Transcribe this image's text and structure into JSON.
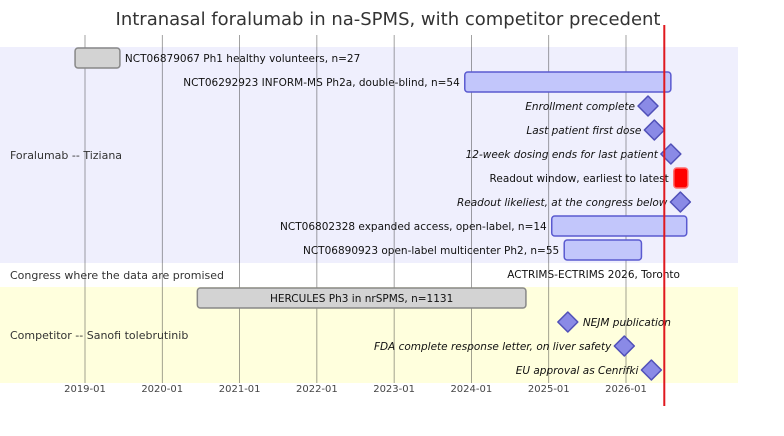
{
  "chart_data": {
    "type": "gantt",
    "title": "Intranasal foralumab in na-SPMS, with competitor precedent",
    "x_axis": {
      "ticks": [
        "2019-01",
        "2020-01",
        "2021-01",
        "2022-01",
        "2023-01",
        "2024-01",
        "2025-01",
        "2026-01"
      ],
      "range": [
        "2018-04-01",
        "2027-05-01"
      ]
    },
    "today_marker": "2026-07-01",
    "colors": {
      "section1_bg": "#efeffd",
      "section2_bg": "#ffffff",
      "section3_bg": "#ffffdd",
      "task_fill": "#c2c6fb",
      "task_stroke": "#5a5ad0",
      "grey_fill": "#d3d3d3",
      "grey_stroke": "#888888",
      "milestone_fill": "#8a8ae6",
      "milestone_stroke": "#5050b8",
      "critical_fill": "#ff0000",
      "today_line": "#e0191f",
      "grid": "#222222"
    },
    "sections": [
      {
        "name": "Foralumab -- Tiziana",
        "rows": [
          0,
          8
        ],
        "bg": "section1_bg"
      },
      {
        "name": "Congress where the data are promised",
        "rows": [
          9,
          9
        ],
        "bg": "section2_bg"
      },
      {
        "name": "Competitor -- Sanofi tolebrutinib",
        "rows": [
          10,
          13
        ],
        "bg": "section3_bg"
      }
    ],
    "tasks": [
      {
        "row": 0,
        "kind": "bar",
        "style": "grey",
        "label": "NCT06879067 Ph1 healthy volunteers, n=27",
        "start": "2018-11-15",
        "end": "2019-06-15",
        "label_pos": "right"
      },
      {
        "row": 1,
        "kind": "bar",
        "style": "active",
        "label": "NCT06292923 INFORM-MS Ph2a, double-blind, n=54",
        "start": "2023-12-01",
        "end": "2026-08-01",
        "label_pos": "left"
      },
      {
        "row": 2,
        "kind": "milestone",
        "style": "active",
        "label": "Enrollment complete",
        "date": "2026-04-15"
      },
      {
        "row": 3,
        "kind": "milestone",
        "style": "active",
        "label": "Last patient first dose",
        "date": "2026-05-15"
      },
      {
        "row": 4,
        "kind": "milestone",
        "style": "active",
        "label": "12-week dosing ends for last patient",
        "date": "2026-08-01"
      },
      {
        "row": 5,
        "kind": "critical",
        "style": "crit",
        "label": "Readout window, earliest to latest",
        "start": "2026-08-15",
        "end": "2026-10-01"
      },
      {
        "row": 6,
        "kind": "milestone",
        "style": "active",
        "label": "Readout likeliest, at the congress below",
        "date": "2026-09-15"
      },
      {
        "row": 7,
        "kind": "bar",
        "style": "active",
        "label": "NCT06802328 expanded access, open-label, n=14",
        "start": "2025-01-15",
        "end": "2026-10-15",
        "label_pos": "left"
      },
      {
        "row": 8,
        "kind": "bar",
        "style": "active",
        "label": "NCT06890923 open-label multicenter Ph2, n=55",
        "start": "2025-03-15",
        "end": "2026-03-15",
        "label_pos": "left"
      },
      {
        "row": 9,
        "kind": "text",
        "style": "none",
        "label": "ACTRIMS-ECTRIMS 2026, Toronto",
        "date": "2025-08-01"
      },
      {
        "row": 10,
        "kind": "bar",
        "style": "grey",
        "label": "HERCULES Ph3 in nrSPMS, n=1131",
        "start": "2020-06-15",
        "end": "2024-09-15",
        "label_pos": "center"
      },
      {
        "row": 11,
        "kind": "milestone",
        "style": "active",
        "label": "NEJM publication",
        "date": "2025-04-01",
        "label_pos": "right"
      },
      {
        "row": 12,
        "kind": "milestone",
        "style": "active",
        "label": "FDA complete response letter, on liver safety",
        "date": "2025-12-24"
      },
      {
        "row": 13,
        "kind": "milestone",
        "style": "active",
        "label": "EU approval as Cenrifki",
        "date": "2026-05-01"
      }
    ]
  }
}
